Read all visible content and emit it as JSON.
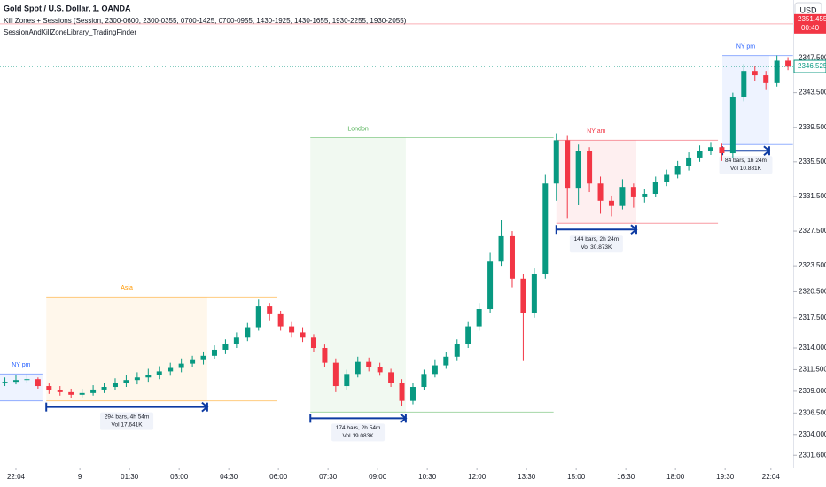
{
  "header": {
    "symbol": "Gold Spot / U.S. Dollar, 1, OANDA",
    "indicator": "Kill Zones + Sessions (Session, 2300-0600, 2300-0355, 0700-1425, 0700-0955, 1430-1925, 1430-1655, 1930-2255, 1930-2055)",
    "library": "SessionAndKillZoneLibrary_TradingFinder",
    "currency": "USD"
  },
  "chart_data": {
    "type": "candlestick",
    "up_color": "#089981",
    "down_color": "#f23645",
    "xlim": [
      -28.9,
      1409.5
    ],
    "ylim": [
      2300.5,
      2354.2
    ],
    "xticks": [
      {
        "value": 0,
        "label": "22:04"
      },
      {
        "value": 116,
        "label": "9"
      },
      {
        "value": 206,
        "label": "01:30"
      },
      {
        "value": 296,
        "label": "03:00"
      },
      {
        "value": 386,
        "label": "04:30"
      },
      {
        "value": 476,
        "label": "06:00"
      },
      {
        "value": 566,
        "label": "07:30"
      },
      {
        "value": 656,
        "label": "09:00"
      },
      {
        "value": 746,
        "label": "10:30"
      },
      {
        "value": 836,
        "label": "12:00"
      },
      {
        "value": 926,
        "label": "13:30"
      },
      {
        "value": 1016,
        "label": "15:00"
      },
      {
        "value": 1106,
        "label": "16:30"
      },
      {
        "value": 1196,
        "label": "18:00"
      },
      {
        "value": 1286,
        "label": "19:30"
      },
      {
        "value": 1369,
        "label": "22:04"
      }
    ],
    "yticks": [
      {
        "value": 2301.6,
        "label": "2301.600"
      },
      {
        "value": 2304,
        "label": "2304.000"
      },
      {
        "value": 2306.5,
        "label": "2306.500"
      },
      {
        "value": 2309,
        "label": "2309.000"
      },
      {
        "value": 2311.5,
        "label": "2311.500"
      },
      {
        "value": 2314,
        "label": "2314.000"
      },
      {
        "value": 2317.5,
        "label": "2317.500"
      },
      {
        "value": 2320.5,
        "label": "2320.500"
      },
      {
        "value": 2323.5,
        "label": "2323.500"
      },
      {
        "value": 2327.5,
        "label": "2327.500"
      },
      {
        "value": 2331.5,
        "label": "2331.500"
      },
      {
        "value": 2335.5,
        "label": "2335.500"
      },
      {
        "value": 2339.5,
        "label": "2339.500"
      },
      {
        "value": 2343.5,
        "label": "2343.500"
      },
      {
        "value": 2347.5,
        "label": "2347.500"
      }
    ],
    "x": [
      -20,
      0,
      20,
      40,
      60,
      80,
      100,
      120,
      140,
      160,
      180,
      200,
      220,
      240,
      260,
      280,
      300,
      320,
      340,
      360,
      380,
      400,
      420,
      440,
      460,
      480,
      500,
      520,
      540,
      560,
      580,
      600,
      620,
      640,
      660,
      680,
      700,
      720,
      740,
      760,
      780,
      800,
      820,
      840,
      860,
      880,
      900,
      920,
      940,
      960,
      980,
      1000,
      1020,
      1040,
      1060,
      1080,
      1100,
      1120,
      1140,
      1160,
      1180,
      1200,
      1220,
      1240,
      1260,
      1280,
      1300,
      1320,
      1340,
      1360,
      1380,
      1400
    ],
    "ohlc": [
      [
        2310.0,
        2310.6,
        2309.6,
        2310.1
      ],
      [
        2310.1,
        2310.9,
        2309.8,
        2310.3
      ],
      [
        2310.3,
        2311.0,
        2309.9,
        2310.4
      ],
      [
        2310.4,
        2310.6,
        2309.3,
        2309.6
      ],
      [
        2309.6,
        2309.9,
        2308.7,
        2309.1
      ],
      [
        2309.1,
        2309.6,
        2308.5,
        2308.9
      ],
      [
        2308.9,
        2309.3,
        2308.2,
        2308.6
      ],
      [
        2308.6,
        2309.3,
        2308.3,
        2308.8
      ],
      [
        2308.8,
        2309.7,
        2308.5,
        2309.2
      ],
      [
        2309.2,
        2310.0,
        2308.8,
        2309.5
      ],
      [
        2309.5,
        2310.5,
        2309.1,
        2310.0
      ],
      [
        2310.0,
        2310.9,
        2309.5,
        2310.3
      ],
      [
        2310.3,
        2311.2,
        2309.8,
        2310.6
      ],
      [
        2310.6,
        2311.6,
        2310.1,
        2310.9
      ],
      [
        2310.9,
        2311.9,
        2310.4,
        2311.3
      ],
      [
        2311.3,
        2312.3,
        2310.8,
        2311.7
      ],
      [
        2311.7,
        2312.8,
        2311.2,
        2312.2
      ],
      [
        2312.2,
        2313.1,
        2311.8,
        2312.6
      ],
      [
        2312.6,
        2313.6,
        2312.1,
        2313.1
      ],
      [
        2313.1,
        2314.3,
        2312.7,
        2313.8
      ],
      [
        2313.8,
        2315.0,
        2313.3,
        2314.5
      ],
      [
        2314.5,
        2315.8,
        2314.0,
        2315.2
      ],
      [
        2315.2,
        2316.9,
        2314.8,
        2316.4
      ],
      [
        2316.4,
        2319.6,
        2316.0,
        2318.8
      ],
      [
        2318.8,
        2319.2,
        2317.2,
        2317.9
      ],
      [
        2317.9,
        2318.3,
        2316.0,
        2316.5
      ],
      [
        2316.5,
        2317.0,
        2315.2,
        2315.8
      ],
      [
        2315.8,
        2316.4,
        2314.7,
        2315.2
      ],
      [
        2315.2,
        2315.6,
        2313.5,
        2314.0
      ],
      [
        2314.0,
        2314.4,
        2311.8,
        2312.3
      ],
      [
        2312.3,
        2312.8,
        2308.9,
        2309.6
      ],
      [
        2309.6,
        2311.5,
        2309.2,
        2311.0
      ],
      [
        2311.0,
        2313.0,
        2310.6,
        2312.4
      ],
      [
        2312.4,
        2312.9,
        2311.3,
        2311.8
      ],
      [
        2311.8,
        2312.3,
        2310.8,
        2311.2
      ],
      [
        2311.2,
        2311.6,
        2309.5,
        2310.0
      ],
      [
        2310.0,
        2310.4,
        2307.3,
        2307.9
      ],
      [
        2307.9,
        2310.0,
        2307.5,
        2309.5
      ],
      [
        2309.5,
        2311.5,
        2309.1,
        2311.0
      ],
      [
        2311.0,
        2312.6,
        2310.6,
        2312.0
      ],
      [
        2312.0,
        2313.5,
        2311.6,
        2313.0
      ],
      [
        2313.0,
        2315.0,
        2312.5,
        2314.5
      ],
      [
        2314.5,
        2317.0,
        2314.0,
        2316.5
      ],
      [
        2316.5,
        2319.2,
        2316.0,
        2318.5
      ],
      [
        2318.5,
        2325.0,
        2318.0,
        2324.0
      ],
      [
        2324.0,
        2328.8,
        2323.5,
        2327.0
      ],
      [
        2327.0,
        2327.5,
        2321.0,
        2322.0
      ],
      [
        2322.0,
        2322.5,
        2312.5,
        2318.0
      ],
      [
        2318.0,
        2323.2,
        2317.5,
        2322.5
      ],
      [
        2322.5,
        2334.0,
        2322.0,
        2333.0
      ],
      [
        2333.0,
        2338.8,
        2331.0,
        2338.0
      ],
      [
        2338.0,
        2338.5,
        2329.0,
        2332.5
      ],
      [
        2332.5,
        2337.5,
        2330.5,
        2336.8
      ],
      [
        2336.8,
        2337.2,
        2332.0,
        2333.0
      ],
      [
        2333.0,
        2333.8,
        2329.5,
        2331.0
      ],
      [
        2331.0,
        2331.6,
        2329.2,
        2330.4
      ],
      [
        2330.4,
        2333.5,
        2330.0,
        2332.6
      ],
      [
        2332.6,
        2333.0,
        2330.2,
        2331.5
      ],
      [
        2331.5,
        2332.4,
        2330.8,
        2331.8
      ],
      [
        2331.8,
        2333.8,
        2331.4,
        2333.2
      ],
      [
        2333.2,
        2334.6,
        2332.7,
        2334.0
      ],
      [
        2334.0,
        2335.6,
        2333.6,
        2335.0
      ],
      [
        2335.0,
        2336.6,
        2334.5,
        2336.0
      ],
      [
        2336.0,
        2337.4,
        2335.5,
        2336.8
      ],
      [
        2336.8,
        2337.8,
        2336.3,
        2337.2
      ],
      [
        2337.2,
        2337.6,
        2335.6,
        2336.5
      ],
      [
        2336.5,
        2343.5,
        2336.0,
        2343.0
      ],
      [
        2343.0,
        2346.8,
        2342.5,
        2346.0
      ],
      [
        2346.0,
        2346.6,
        2344.8,
        2345.5
      ],
      [
        2345.5,
        2346.0,
        2343.8,
        2344.6
      ],
      [
        2344.6,
        2347.8,
        2344.2,
        2347.2
      ],
      [
        2347.2,
        2347.6,
        2346.1,
        2346.5
      ]
    ],
    "last_price": {
      "value": 2346.525,
      "label": "2346.525"
    },
    "alert_price": {
      "value": 2351.455,
      "label": "2351.455",
      "timer": "00:40"
    },
    "sessions": [
      {
        "name": "NY pm",
        "color": "#2962ff",
        "start": -29,
        "end": 48,
        "line_end": 48,
        "high": 2311.0,
        "low": 2307.9
      },
      {
        "name": "Asia",
        "color": "#ff9800",
        "start": 55,
        "end": 347,
        "line_end": 473,
        "high": 2319.9,
        "low": 2307.9,
        "bars": "294 bars, 4h 54m",
        "vol": "Vol 17.641K"
      },
      {
        "name": "London",
        "color": "#4caf50",
        "start": 534,
        "end": 707,
        "line_end": 975,
        "high": 2338.3,
        "low": 2306.6,
        "bars": "174 bars, 2h 54m",
        "vol": "Vol 19.083K"
      },
      {
        "name": "NY am",
        "color": "#f23645",
        "start": 980,
        "end": 1125,
        "line_end": 1273,
        "high": 2338.0,
        "low": 2328.4,
        "bars": "144 bars, 2h 24m",
        "vol": "Vol 30.873K"
      },
      {
        "name": "NY pm",
        "color": "#2962ff",
        "start": 1281,
        "end": 1366,
        "line_end": 1409,
        "high": 2347.8,
        "low": 2337.5,
        "bars": "84 bars, 1h 24m",
        "vol": "Vol 10.881K"
      }
    ]
  }
}
